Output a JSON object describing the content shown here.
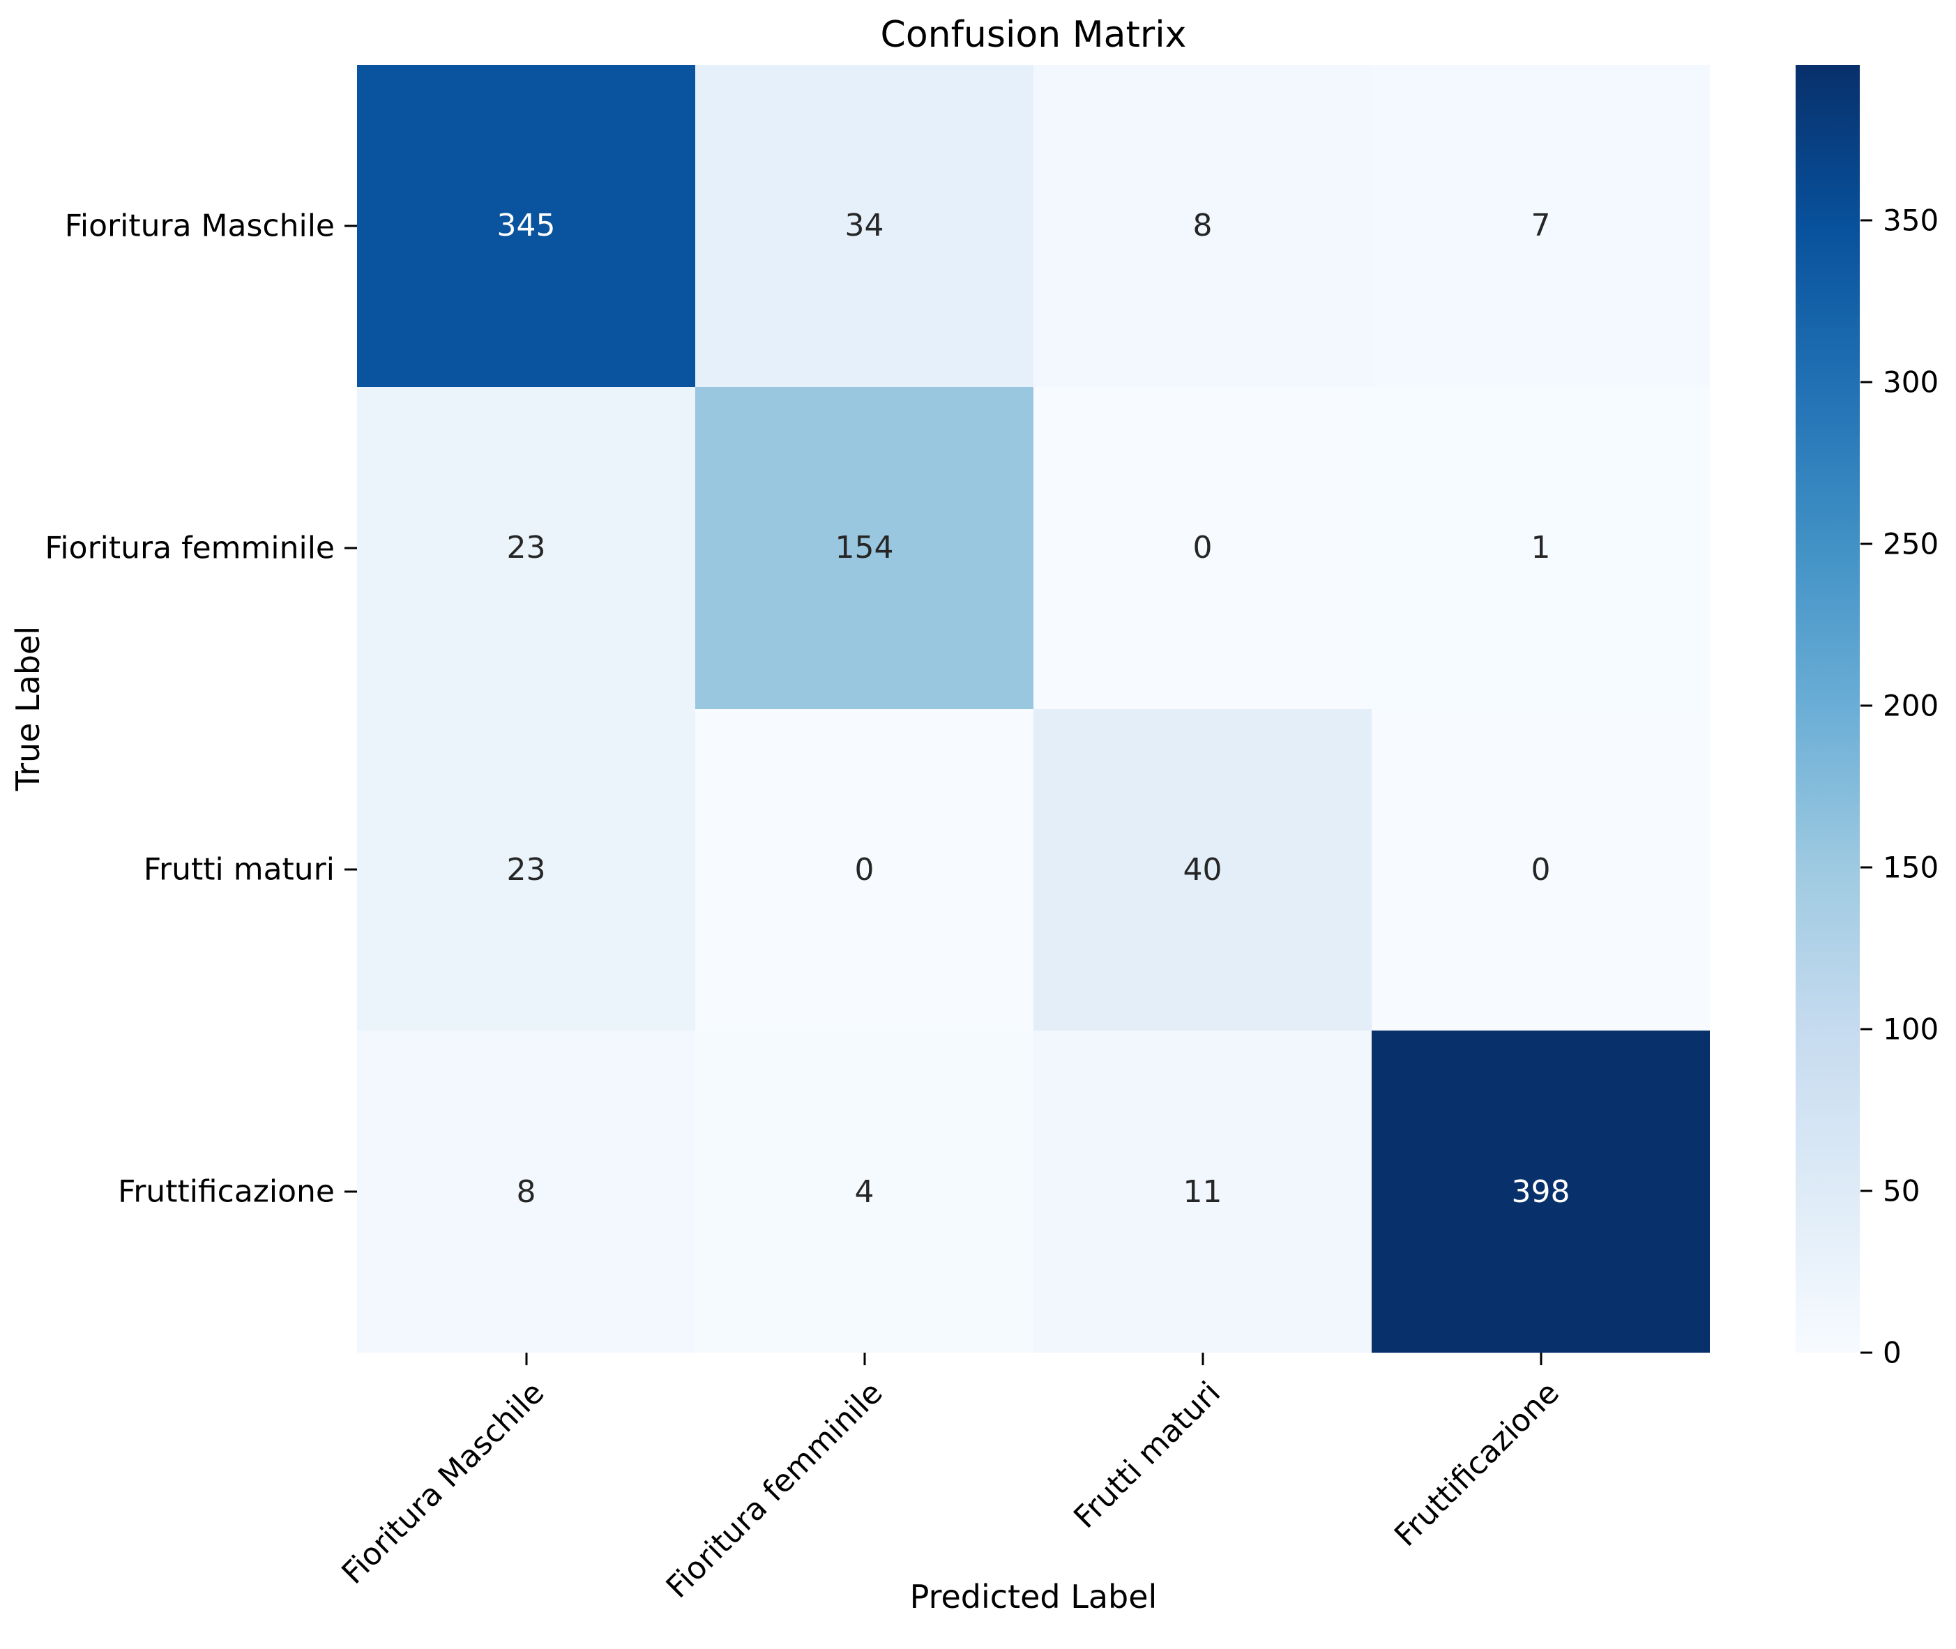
{
  "chart_data": {
    "type": "heatmap",
    "title": "Confusion Matrix",
    "xlabel": "Predicted Label",
    "ylabel": "True Label",
    "x_categories": [
      "Fioritura Maschile",
      "Fioritura femminile",
      "Frutti maturi",
      "Fruttificazione"
    ],
    "y_categories": [
      "Fioritura Maschile",
      "Fioritura femminile",
      "Frutti maturi",
      "Fruttificazione"
    ],
    "matrix": [
      [
        345,
        34,
        8,
        7
      ],
      [
        23,
        154,
        0,
        1
      ],
      [
        23,
        0,
        40,
        0
      ],
      [
        8,
        4,
        11,
        398
      ]
    ],
    "vmin": 0,
    "vmax": 398,
    "colormap": "Blues",
    "colormap_stops": [
      "#f7fbff",
      "#deebf7",
      "#c6dbef",
      "#9ecae1",
      "#6baed6",
      "#4292c6",
      "#2171b5",
      "#08519c",
      "#08306b"
    ],
    "cell_colors": [
      [
        "#0a539e",
        "#e6f0fa",
        "#f3f8fe",
        "#f3f9fe"
      ],
      [
        "#ebf4fb",
        "#99c7e0",
        "#f7fbff",
        "#f6fbff"
      ],
      [
        "#ebf4fb",
        "#f7fbff",
        "#e3eef9",
        "#f7fbff"
      ],
      [
        "#f3f8fe",
        "#f5fafe",
        "#f1f7fd",
        "#08306b"
      ]
    ],
    "cell_text_colors": [
      [
        "#ffffff",
        "#262626",
        "#262626",
        "#262626"
      ],
      [
        "#262626",
        "#262626",
        "#262626",
        "#262626"
      ],
      [
        "#262626",
        "#262626",
        "#262626",
        "#262626"
      ],
      [
        "#262626",
        "#262626",
        "#262626",
        "#ffffff"
      ]
    ],
    "colorbar_ticks": [
      0,
      50,
      100,
      150,
      200,
      250,
      300,
      350
    ],
    "legend_position": "right-colorbar",
    "grid": false,
    "annotation_color_dark": "#262626",
    "annotation_color_light": "#ffffff"
  }
}
